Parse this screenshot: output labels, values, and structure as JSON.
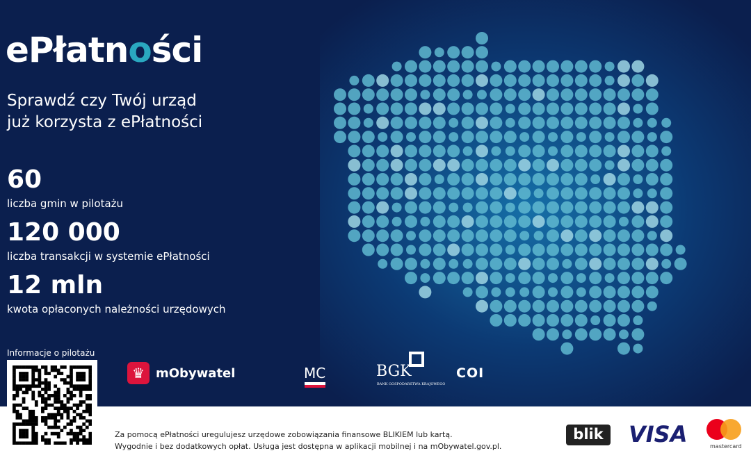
{
  "title_prefix": "ePłatn",
  "title_o": "o",
  "title_suffix": "ści",
  "subtitle": [
    "Sprawdź czy Twój urząd",
    "już korzysta z ePłatności"
  ],
  "stats": [
    {
      "value": "60",
      "label": "liczba gmin w pilotażu"
    },
    {
      "value": "120 000",
      "label": "liczba transakcji w systemie ePłatności"
    },
    {
      "value": "12 mln",
      "label": "kwota opłaconych należności urzędowych"
    }
  ],
  "qr_label": "Informacje o pilotażu",
  "partners": {
    "mobywatel": "mObywatel",
    "mc": "MC",
    "bgk": "BGK",
    "bgk_full": "BANK GOSPODARSTWA KRAJOWEGO",
    "coi": "COI"
  },
  "footer": [
    "Za pomocą ePłatności uregulujesz urzędowe zobowiązania finansowe BLIKIEM lub kartą.",
    "Wygodnie i bez dodatkowych opłat. Usługa jest dostępna w aplikacji mobilnej i na mObywatel.gov.pl."
  ],
  "payments": {
    "blik": "blik",
    "visa": "VISA",
    "mastercard": "mastercard"
  },
  "colors": {
    "navy": "#0b1f4e",
    "accent": "#2aa8c0",
    "dot": "#5fb8d0"
  }
}
